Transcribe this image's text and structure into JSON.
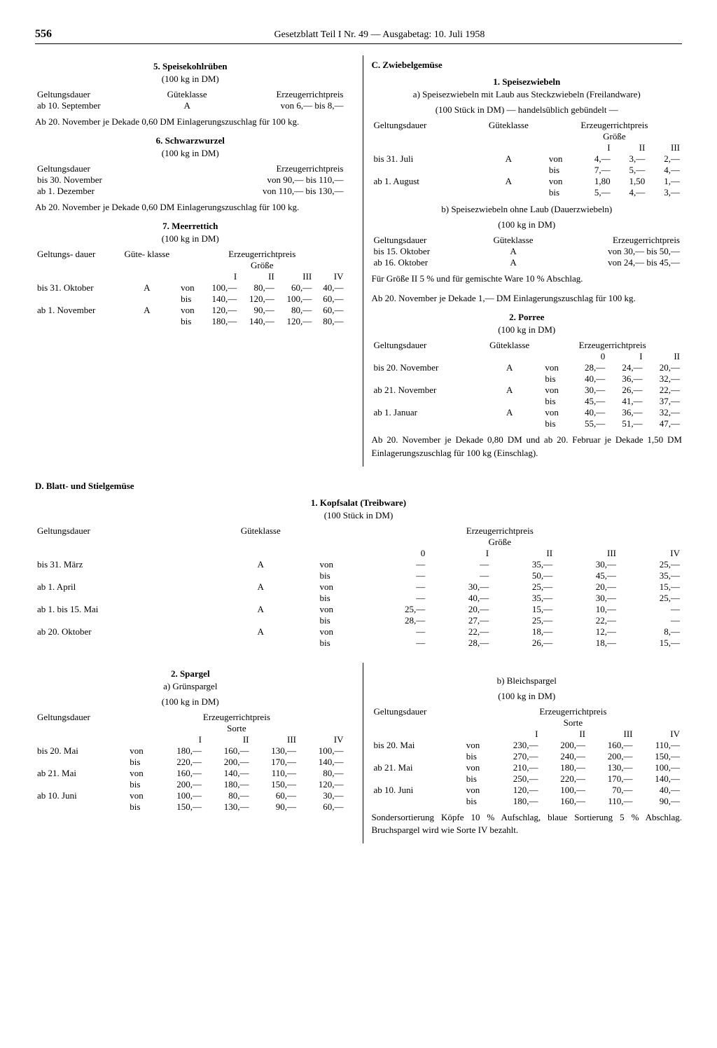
{
  "page_number": "556",
  "header": "Gesetzblatt Teil I Nr. 49 — Ausgabetag: 10. Juli 1958",
  "s5": {
    "title": "5. Speisekohlrüben",
    "unit": "(100 kg in DM)",
    "h1": "Geltungsdauer",
    "h2": "Güteklasse",
    "h3": "Erzeugerrichtpreis",
    "r1a": "ab 10. September",
    "r1b": "A",
    "r1c": "von  6,— bis  8,—",
    "note": "Ab 20. November je Dekade 0,60 DM Einlagerungs­zuschlag für 100 kg."
  },
  "s6": {
    "title": "6. Schwarzwurzel",
    "unit": "(100 kg in DM)",
    "h1": "Geltungsdauer",
    "h3": "Erzeugerrichtpreis",
    "r1a": "bis 30. November",
    "r1c": "von  90,— bis 110,—",
    "r2a": "ab 1. Dezember",
    "r2c": "von 110,— bis 130,—",
    "note": "Ab 20. November je Dekade 0,60 DM Einlagerungs­zuschlag für 100 kg."
  },
  "s7": {
    "title": "7. Meerrettich",
    "unit": "(100 kg in DM)",
    "h1": "Geltungs-\ndauer",
    "h2": "Güte-\nklasse",
    "h3": "Erzeugerrichtpreis\nGröße",
    "cols": [
      "I",
      "II",
      "III",
      "IV"
    ],
    "rows": [
      {
        "d": "bis 31. Oktober",
        "g": "A",
        "vb": "von",
        "v": [
          "100,—",
          "80,—",
          "60,—",
          "40,—"
        ]
      },
      {
        "d": "",
        "g": "",
        "vb": "bis",
        "v": [
          "140,—",
          "120,—",
          "100,—",
          "60,—"
        ]
      },
      {
        "d": "ab 1. November",
        "g": "A",
        "vb": "von",
        "v": [
          "120,—",
          "90,—",
          "80,—",
          "60,—"
        ]
      },
      {
        "d": "",
        "g": "",
        "vb": "bis",
        "v": [
          "180,—",
          "140,—",
          "120,—",
          "80,—"
        ]
      }
    ]
  },
  "C": {
    "title": "C. Zwiebelgemüse"
  },
  "c1": {
    "title": "1. Speisezwiebeln",
    "sub_a": "a) Speisezwiebeln mit Laub aus Steckzwiebeln (Freilandware)",
    "unit_a": "(100 Stück in DM) — handelsüblich gebündelt —",
    "h1": "Geltungsdauer",
    "h2": "Güteklasse",
    "h3": "Erzeugerrichtpreis\nGröße",
    "cols": [
      "I",
      "II",
      "III"
    ],
    "rows_a": [
      {
        "d": "bis 31. Juli",
        "g": "A",
        "vb": "von",
        "v": [
          "4,—",
          "3,—",
          "2,—"
        ]
      },
      {
        "d": "",
        "g": "",
        "vb": "bis",
        "v": [
          "7,—",
          "5,—",
          "4,—"
        ]
      },
      {
        "d": "ab  1. August",
        "g": "A",
        "vb": "von",
        "v": [
          "1,80",
          "1,50",
          "1,—"
        ]
      },
      {
        "d": "",
        "g": "",
        "vb": "bis",
        "v": [
          "5,—",
          "4,—",
          "3,—"
        ]
      }
    ],
    "sub_b": "b) Speisezwiebeln ohne Laub (Dauerzwiebeln)",
    "unit_b": "(100 kg in DM)",
    "rows_b": [
      {
        "d": "bis 15. Oktober",
        "g": "A",
        "p": "von 30,— bis 50,—"
      },
      {
        "d": "ab 16. Oktober",
        "g": "A",
        "p": "von 24,— bis 45,—"
      }
    ],
    "note_b1": "Für Größe II 5 % und für gemischte Ware 10 % Abschlag.",
    "note_b2": "Ab 20. November je Dekade 1,— DM Einlagerungs­zuschlag für 100 kg."
  },
  "c2": {
    "title": "2. Porree",
    "unit": "(100 kg in DM)",
    "h1": "Geltungsdauer",
    "h2": "Güteklasse",
    "h3": "Erzeugerrichtpreis",
    "cols": [
      "0",
      "I",
      "II"
    ],
    "rows": [
      {
        "d": "bis 20. November",
        "g": "A",
        "vb": "von",
        "v": [
          "28,—",
          "24,—",
          "20,—"
        ]
      },
      {
        "d": "",
        "g": "",
        "vb": "bis",
        "v": [
          "40,—",
          "36,—",
          "32,—"
        ]
      },
      {
        "d": "ab 21. November",
        "g": "A",
        "vb": "von",
        "v": [
          "30,—",
          "26,—",
          "22,—"
        ]
      },
      {
        "d": "",
        "g": "",
        "vb": "bis",
        "v": [
          "45,—",
          "41,—",
          "37,—"
        ]
      },
      {
        "d": "ab  1. Januar",
        "g": "A",
        "vb": "von",
        "v": [
          "40,—",
          "36,—",
          "32,—"
        ]
      },
      {
        "d": "",
        "g": "",
        "vb": "bis",
        "v": [
          "55,—",
          "51,—",
          "47,—"
        ]
      }
    ],
    "note": "Ab 20. November je Dekade 0,80 DM und ab 20. Februar je Dekade 1,50 DM Einlagerungszuschlag für 100 kg (Einschlag)."
  },
  "D": {
    "title": "D. Blatt- und Stielgemüse"
  },
  "d1": {
    "title": "1. Kopfsalat (Treibware)",
    "unit": "(100 Stück in DM)",
    "h1": "Geltungsdauer",
    "h2": "Güteklasse",
    "h3": "Erzeugerrichtpreis\nGröße",
    "cols": [
      "0",
      "I",
      "II",
      "III",
      "IV"
    ],
    "rows": [
      {
        "d": "bis  31. März",
        "g": "A",
        "vb": "von",
        "v": [
          "—",
          "—",
          "35,—",
          "30,—",
          "25,—"
        ]
      },
      {
        "d": "",
        "g": "",
        "vb": "bis",
        "v": [
          "—",
          "—",
          "50,—",
          "45,—",
          "35,—"
        ]
      },
      {
        "d": "ab  1. April",
        "g": "A",
        "vb": "von",
        "v": [
          "—",
          "30,—",
          "25,—",
          "20,—",
          "15,—"
        ]
      },
      {
        "d": "",
        "g": "",
        "vb": "bis",
        "v": [
          "—",
          "40,—",
          "35,—",
          "30,—",
          "25,—"
        ]
      },
      {
        "d": "ab  1. bis 15. Mai",
        "g": "A",
        "vb": "von",
        "v": [
          "25,—",
          "20,—",
          "15,—",
          "10,—",
          "—"
        ]
      },
      {
        "d": "",
        "g": "",
        "vb": "bis",
        "v": [
          "28,—",
          "27,—",
          "25,—",
          "22,—",
          "—"
        ]
      },
      {
        "d": "ab 20. Oktober",
        "g": "A",
        "vb": "von",
        "v": [
          "—",
          "22,—",
          "18,—",
          "12,—",
          "8,—"
        ]
      },
      {
        "d": "",
        "g": "",
        "vb": "bis",
        "v": [
          "—",
          "28,—",
          "26,—",
          "18,—",
          "15,—"
        ]
      }
    ]
  },
  "d2": {
    "title": "2. Spargel",
    "sub_a": "a) Grünspargel",
    "unit": "(100 kg in DM)",
    "h1": "Geltungsdauer",
    "h3": "Erzeugerrichtpreis",
    "h4": "Sorte",
    "cols": [
      "I",
      "II",
      "III",
      "IV"
    ],
    "rows_a": [
      {
        "d": "bis 20. Mai",
        "vb": "von",
        "v": [
          "180,—",
          "160,—",
          "130,—",
          "100,—"
        ]
      },
      {
        "d": "",
        "vb": "bis",
        "v": [
          "220,—",
          "200,—",
          "170,—",
          "140,—"
        ]
      },
      {
        "d": "ab 21. Mai",
        "vb": "von",
        "v": [
          "160,—",
          "140,—",
          "110,—",
          "80,—"
        ]
      },
      {
        "d": "",
        "vb": "bis",
        "v": [
          "200,—",
          "180,—",
          "150,—",
          "120,—"
        ]
      },
      {
        "d": "ab 10. Juni",
        "vb": "von",
        "v": [
          "100,—",
          "80,—",
          "60,—",
          "30,—"
        ]
      },
      {
        "d": "",
        "vb": "bis",
        "v": [
          "150,—",
          "130,—",
          "90,—",
          "60,—"
        ]
      }
    ],
    "sub_b": "b) Bleichspargel",
    "rows_b": [
      {
        "d": "bis 20. Mai",
        "vb": "von",
        "v": [
          "230,—",
          "200,—",
          "160,—",
          "110,—"
        ]
      },
      {
        "d": "",
        "vb": "bis",
        "v": [
          "270,—",
          "240,—",
          "200,—",
          "150,—"
        ]
      },
      {
        "d": "ab 21. Mai",
        "vb": "von",
        "v": [
          "210,—",
          "180,—",
          "130,—",
          "100,—"
        ]
      },
      {
        "d": "",
        "vb": "bis",
        "v": [
          "250,—",
          "220,—",
          "170,—",
          "140,—"
        ]
      },
      {
        "d": "ab 10. Juni",
        "vb": "von",
        "v": [
          "120,—",
          "100,—",
          "70,—",
          "40,—"
        ]
      },
      {
        "d": "",
        "vb": "bis",
        "v": [
          "180,—",
          "160,—",
          "110,—",
          "90,—"
        ]
      }
    ],
    "note_b": "Sondersortierung Köpfe 10 % Aufschlag, blaue Sortierung 5 % Abschlag. Bruchspargel wird wie Sorte IV bezahlt."
  }
}
